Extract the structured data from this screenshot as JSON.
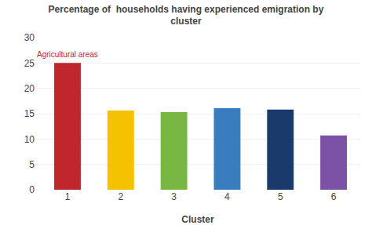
{
  "chart_data": {
    "type": "bar",
    "title": "Percentage of  households having experienced emigration by\ncluster",
    "xlabel": "Cluster",
    "categories": [
      "1",
      "2",
      "3",
      "4",
      "5",
      "6"
    ],
    "values": [
      25.0,
      15.6,
      15.3,
      16.1,
      15.8,
      10.7
    ],
    "colors": [
      "#c0272d",
      "#f5c200",
      "#77b843",
      "#3a7dbf",
      "#1a3a6b",
      "#7b52a6"
    ],
    "ylim": [
      0,
      30
    ],
    "yticks": [
      0,
      5,
      10,
      15,
      20,
      25,
      30
    ],
    "grid": true,
    "annotations": [
      {
        "text": "Agricultural areas",
        "color": "#c0272d"
      }
    ]
  }
}
